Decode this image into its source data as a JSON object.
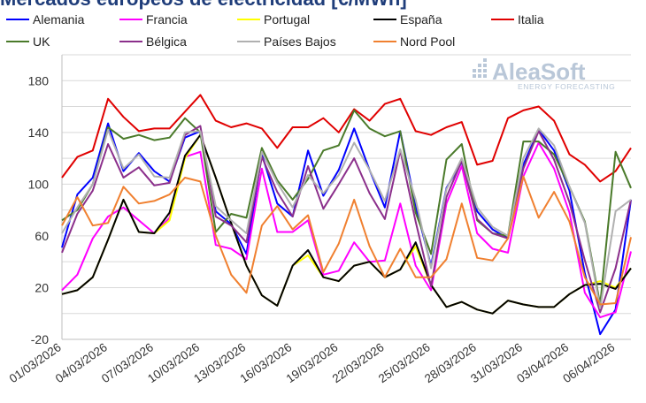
{
  "chart_data": {
    "type": "line",
    "title": "Mercados europeos de electricidad [€/MWh]",
    "xlabel": "",
    "ylabel": "",
    "ylim": [
      -20,
      200
    ],
    "yticks": [
      -20,
      20,
      60,
      100,
      140,
      180
    ],
    "x_tick_labels": [
      "01/03/2026",
      "04/03/2026",
      "07/03/2026",
      "10/03/2026",
      "13/03/2026",
      "16/03/2026",
      "19/03/2026",
      "22/03/2026",
      "25/03/2026",
      "28/03/2026",
      "31/03/2026",
      "03/04/2026",
      "06/04/2026"
    ],
    "x_tick_index": [
      0,
      3,
      6,
      9,
      12,
      15,
      18,
      21,
      24,
      27,
      30,
      33,
      36
    ],
    "num_days": 38,
    "watermark": {
      "main": "AleaSoft",
      "sub": "ENERGY FORECASTING"
    },
    "series": [
      {
        "name": "Alemania",
        "color": "#0000ff",
        "values": [
          51,
          92,
          105,
          147,
          110,
          124,
          110,
          102,
          136,
          141,
          79,
          69,
          46,
          123,
          85,
          75,
          126,
          91,
          111,
          143,
          111,
          82,
          141,
          83,
          37,
          97,
          117,
          79,
          65,
          58,
          115,
          142,
          126,
          95,
          31,
          -16,
          3,
          88
        ]
      },
      {
        "name": "Francia",
        "color": "#ff00ff",
        "values": [
          18,
          30,
          58,
          75,
          82,
          72,
          62,
          74,
          121,
          125,
          53,
          50,
          42,
          112,
          63,
          63,
          72,
          30,
          33,
          55,
          40,
          41,
          85,
          37,
          18,
          85,
          114,
          62,
          50,
          47,
          106,
          132,
          112,
          78,
          16,
          -3,
          1,
          48
        ]
      },
      {
        "name": "Portugal",
        "color": "#ffff00",
        "values": [
          15,
          18,
          28,
          57,
          88,
          63,
          62,
          72,
          120,
          138,
          105,
          70,
          37,
          14,
          6,
          37,
          45,
          28,
          25,
          37,
          40,
          28,
          34,
          52,
          22,
          5,
          9,
          3,
          0,
          10,
          7,
          5,
          5,
          15,
          22,
          25,
          20,
          35
        ]
      },
      {
        "name": "España",
        "color": "#000000",
        "values": [
          15,
          18,
          28,
          57,
          88,
          63,
          62,
          78,
          122,
          138,
          105,
          70,
          37,
          14,
          6,
          37,
          49,
          28,
          25,
          37,
          40,
          28,
          34,
          55,
          22,
          5,
          9,
          3,
          0,
          10,
          7,
          5,
          5,
          15,
          22,
          23,
          19,
          35
        ]
      },
      {
        "name": "Italia",
        "color": "#e00000",
        "values": [
          105,
          121,
          126,
          166,
          152,
          141,
          143,
          143,
          156,
          169,
          149,
          144,
          147,
          143,
          128,
          144,
          144,
          151,
          140,
          158,
          149,
          162,
          166,
          141,
          138,
          144,
          148,
          115,
          118,
          151,
          157,
          160,
          149,
          123,
          115,
          102,
          110,
          128
        ]
      },
      {
        "name": "UK",
        "color": "#4a7a2a",
        "values": [
          72,
          80,
          100,
          144,
          135,
          138,
          134,
          136,
          151,
          140,
          63,
          77,
          74,
          128,
          103,
          88,
          104,
          126,
          130,
          157,
          143,
          137,
          141,
          78,
          46,
          119,
          131,
          72,
          62,
          60,
          133,
          133,
          123,
          98,
          71,
          7,
          125,
          97
        ]
      },
      {
        "name": "Bélgica",
        "color": "#8b2f8b",
        "values": [
          47,
          77,
          95,
          131,
          105,
          113,
          99,
          101,
          138,
          145,
          75,
          68,
          55,
          121,
          94,
          75,
          114,
          81,
          100,
          120,
          93,
          73,
          126,
          71,
          21,
          90,
          118,
          73,
          62,
          58,
          112,
          141,
          119,
          86,
          41,
          1,
          35,
          88
        ]
      },
      {
        "name": "Países Bajos",
        "color": "#b0b0b0",
        "values": [
          62,
          82,
          100,
          142,
          112,
          123,
          106,
          105,
          140,
          141,
          83,
          72,
          62,
          125,
          101,
          82,
          107,
          93,
          107,
          132,
          111,
          87,
          127,
          88,
          35,
          96,
          120,
          82,
          67,
          60,
          120,
          143,
          130,
          98,
          70,
          4,
          79,
          88
        ]
      },
      {
        "name": "Nord Pool",
        "color": "#f08030",
        "values": [
          68,
          90,
          68,
          70,
          98,
          85,
          87,
          92,
          105,
          102,
          60,
          30,
          16,
          68,
          83,
          65,
          76,
          32,
          54,
          88,
          52,
          28,
          50,
          28,
          28,
          42,
          85,
          43,
          41,
          58,
          106,
          74,
          94,
          71,
          28,
          7,
          8,
          59
        ]
      }
    ]
  }
}
